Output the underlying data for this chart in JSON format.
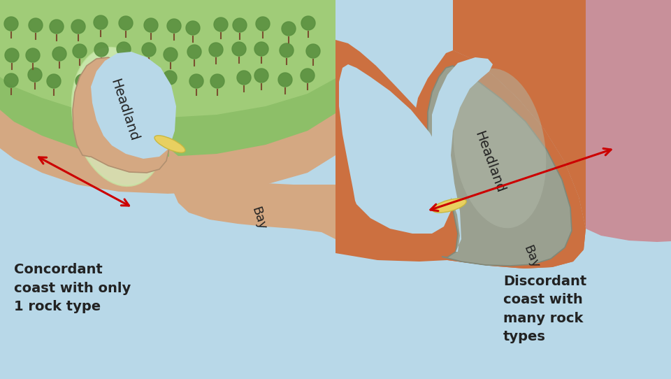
{
  "sea_color": "#b8d8e8",
  "green_color": "#8dbf68",
  "green_dark": "#5a9040",
  "green_light": "#b0d880",
  "peach_color": "#d4a882",
  "peach_dark": "#c09070",
  "orange_color": "#cc7040",
  "gray_color": "#9aA090",
  "gray_light": "#b0b8a8",
  "pink_color": "#c8909a",
  "sand_color": "#e8d060",
  "arrow_color": "#cc0000",
  "text_dark": "#222222",
  "label_concordant": "Concordant\ncoast with only\n1 rock type",
  "label_discordant": "Discordant\ncoast with\nmany rock\ntypes",
  "label_bay1": "Bay",
  "label_headland1": "Headland",
  "label_bay2": "Bay",
  "label_headland2": "Headland",
  "label_fontsize": 14,
  "headland_fontsize": 14,
  "bay_fontsize": 13
}
